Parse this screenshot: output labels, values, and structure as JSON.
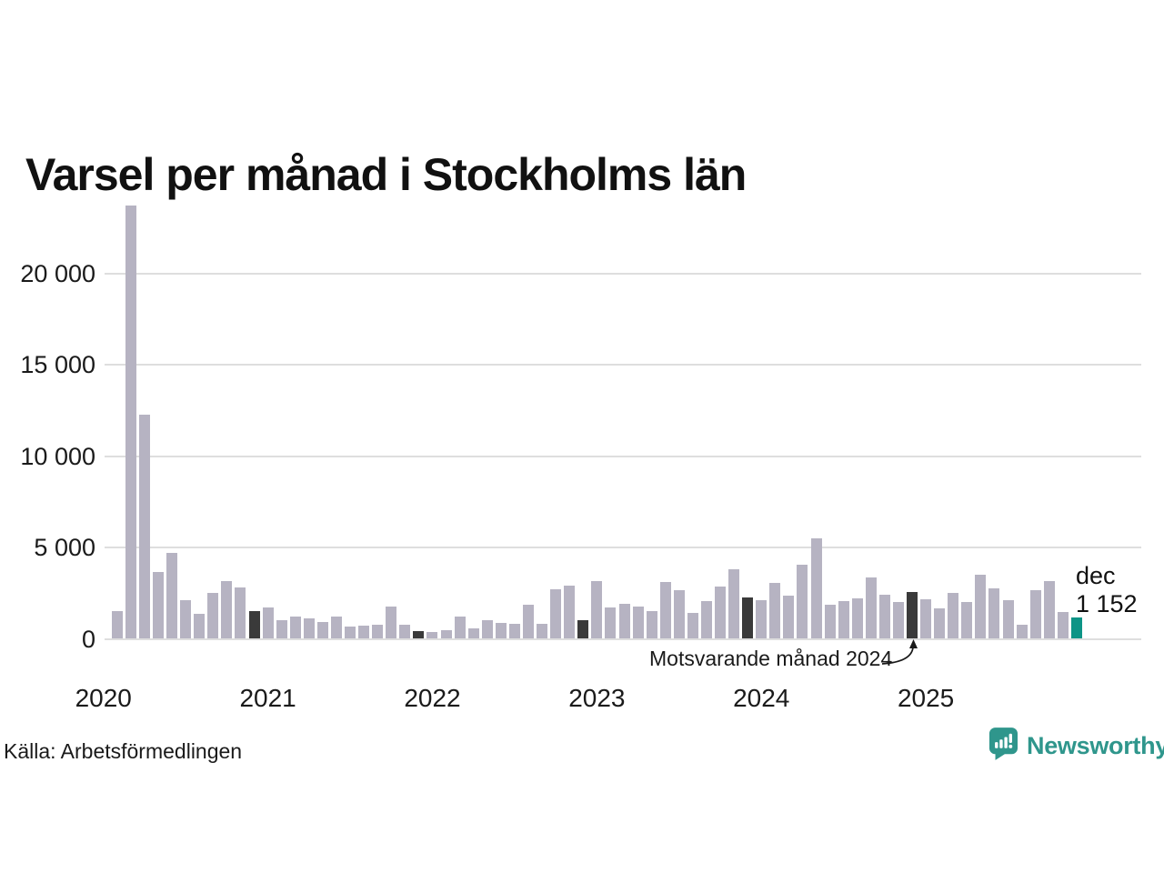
{
  "title": "Varsel per månad i Stockholms län",
  "source": "Källa: Arbetsförmedlingen",
  "logo": {
    "text": "Newsworthy",
    "color": "#2f968c"
  },
  "chart_data": {
    "type": "bar",
    "title": "Varsel per månad i Stockholms län",
    "xlabel": "",
    "ylabel": "",
    "ylim": [
      0,
      24000
    ],
    "yticks": [
      0,
      5000,
      10000,
      15000,
      20000
    ],
    "ytick_labels": [
      "0",
      "5 000",
      "10 000",
      "15 000",
      "20 000"
    ],
    "year_labels": [
      "2020",
      "2021",
      "2022",
      "2023",
      "2024",
      "2025"
    ],
    "grid": "horizontal",
    "legend": "none",
    "colors": {
      "normal": "#b6b3c2",
      "december": "#3a3a3a",
      "current": "#0d9486"
    },
    "annotation_label": "Motsvarande månad 2024",
    "last_point_label": {
      "line1": "dec",
      "line2": "1 152"
    },
    "series": [
      {
        "month": "feb 2020",
        "value": 1500,
        "kind": "normal"
      },
      {
        "month": "mar 2020",
        "value": 23700,
        "kind": "normal"
      },
      {
        "month": "apr 2020",
        "value": 12270,
        "kind": "normal"
      },
      {
        "month": "maj 2020",
        "value": 3640,
        "kind": "normal"
      },
      {
        "month": "jun 2020",
        "value": 4710,
        "kind": "normal"
      },
      {
        "month": "jul 2020",
        "value": 2100,
        "kind": "normal"
      },
      {
        "month": "aug 2020",
        "value": 1360,
        "kind": "normal"
      },
      {
        "month": "sep 2020",
        "value": 2520,
        "kind": "normal"
      },
      {
        "month": "okt 2020",
        "value": 3180,
        "kind": "normal"
      },
      {
        "month": "nov 2020",
        "value": 2820,
        "kind": "normal"
      },
      {
        "month": "dec 2020",
        "value": 1520,
        "kind": "december"
      },
      {
        "month": "jan 2021",
        "value": 1740,
        "kind": "normal"
      },
      {
        "month": "feb 2021",
        "value": 1020,
        "kind": "normal"
      },
      {
        "month": "mar 2021",
        "value": 1230,
        "kind": "normal"
      },
      {
        "month": "apr 2021",
        "value": 1120,
        "kind": "normal"
      },
      {
        "month": "maj 2021",
        "value": 920,
        "kind": "normal"
      },
      {
        "month": "jun 2021",
        "value": 1220,
        "kind": "normal"
      },
      {
        "month": "jul 2021",
        "value": 670,
        "kind": "normal"
      },
      {
        "month": "aug 2021",
        "value": 700,
        "kind": "normal"
      },
      {
        "month": "sep 2021",
        "value": 750,
        "kind": "normal"
      },
      {
        "month": "okt 2021",
        "value": 1770,
        "kind": "normal"
      },
      {
        "month": "nov 2021",
        "value": 750,
        "kind": "normal"
      },
      {
        "month": "dec 2021",
        "value": 400,
        "kind": "december"
      },
      {
        "month": "jan 2022",
        "value": 350,
        "kind": "normal"
      },
      {
        "month": "feb 2022",
        "value": 480,
        "kind": "normal"
      },
      {
        "month": "mar 2022",
        "value": 1240,
        "kind": "normal"
      },
      {
        "month": "apr 2022",
        "value": 560,
        "kind": "normal"
      },
      {
        "month": "maj 2022",
        "value": 1030,
        "kind": "normal"
      },
      {
        "month": "jun 2022",
        "value": 880,
        "kind": "normal"
      },
      {
        "month": "jul 2022",
        "value": 810,
        "kind": "normal"
      },
      {
        "month": "aug 2022",
        "value": 1870,
        "kind": "normal"
      },
      {
        "month": "sep 2022",
        "value": 810,
        "kind": "normal"
      },
      {
        "month": "okt 2022",
        "value": 2690,
        "kind": "normal"
      },
      {
        "month": "nov 2022",
        "value": 2910,
        "kind": "normal"
      },
      {
        "month": "dec 2022",
        "value": 1030,
        "kind": "december"
      },
      {
        "month": "jan 2023",
        "value": 3140,
        "kind": "normal"
      },
      {
        "month": "feb 2023",
        "value": 1700,
        "kind": "normal"
      },
      {
        "month": "mar 2023",
        "value": 1900,
        "kind": "normal"
      },
      {
        "month": "apr 2023",
        "value": 1750,
        "kind": "normal"
      },
      {
        "month": "maj 2023",
        "value": 1500,
        "kind": "normal"
      },
      {
        "month": "jun 2023",
        "value": 3090,
        "kind": "normal"
      },
      {
        "month": "jul 2023",
        "value": 2680,
        "kind": "normal"
      },
      {
        "month": "aug 2023",
        "value": 1410,
        "kind": "normal"
      },
      {
        "month": "sep 2023",
        "value": 2070,
        "kind": "normal"
      },
      {
        "month": "okt 2023",
        "value": 2840,
        "kind": "normal"
      },
      {
        "month": "nov 2023",
        "value": 3810,
        "kind": "normal"
      },
      {
        "month": "dec 2023",
        "value": 2280,
        "kind": "december"
      },
      {
        "month": "jan 2024",
        "value": 2120,
        "kind": "normal"
      },
      {
        "month": "feb 2024",
        "value": 3070,
        "kind": "normal"
      },
      {
        "month": "mar 2024",
        "value": 2360,
        "kind": "normal"
      },
      {
        "month": "apr 2024",
        "value": 4060,
        "kind": "normal"
      },
      {
        "month": "maj 2024",
        "value": 5500,
        "kind": "normal"
      },
      {
        "month": "jun 2024",
        "value": 1870,
        "kind": "normal"
      },
      {
        "month": "jul 2024",
        "value": 2080,
        "kind": "normal"
      },
      {
        "month": "aug 2024",
        "value": 2200,
        "kind": "normal"
      },
      {
        "month": "sep 2024",
        "value": 3350,
        "kind": "normal"
      },
      {
        "month": "okt 2024",
        "value": 2400,
        "kind": "normal"
      },
      {
        "month": "nov 2024",
        "value": 2030,
        "kind": "normal"
      },
      {
        "month": "dec 2024",
        "value": 2560,
        "kind": "december"
      },
      {
        "month": "jan 2025",
        "value": 2150,
        "kind": "normal"
      },
      {
        "month": "feb 2025",
        "value": 1660,
        "kind": "normal"
      },
      {
        "month": "mar 2025",
        "value": 2530,
        "kind": "normal"
      },
      {
        "month": "apr 2025",
        "value": 2020,
        "kind": "normal"
      },
      {
        "month": "maj 2025",
        "value": 3520,
        "kind": "normal"
      },
      {
        "month": "jun 2025",
        "value": 2770,
        "kind": "normal"
      },
      {
        "month": "jul 2025",
        "value": 2120,
        "kind": "normal"
      },
      {
        "month": "aug 2025",
        "value": 790,
        "kind": "normal"
      },
      {
        "month": "sep 2025",
        "value": 2640,
        "kind": "normal"
      },
      {
        "month": "okt 2025",
        "value": 3170,
        "kind": "normal"
      },
      {
        "month": "nov 2025",
        "value": 1460,
        "kind": "normal"
      },
      {
        "month": "dec 2025",
        "value": 1152,
        "kind": "current"
      }
    ]
  }
}
